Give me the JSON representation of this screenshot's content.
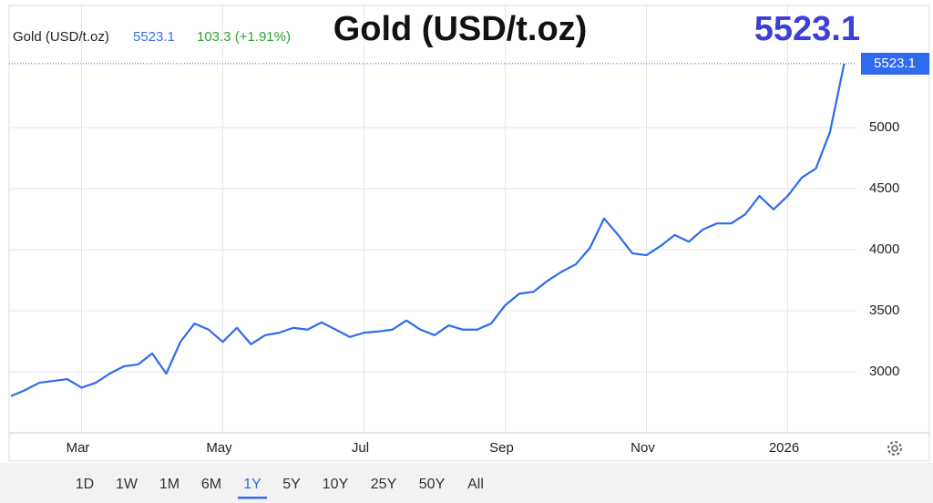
{
  "chart_data": {
    "type": "line",
    "title": "Gold (USD/t.oz)",
    "change": "103.3 (+1.91%)",
    "categories": [
      null,
      null,
      null,
      null,
      null,
      "Mar",
      null,
      null,
      null,
      null,
      null,
      null,
      null,
      null,
      null,
      "May",
      null,
      null,
      null,
      null,
      null,
      null,
      null,
      null,
      null,
      "Jul",
      null,
      null,
      null,
      null,
      null,
      null,
      null,
      null,
      null,
      "Sep",
      null,
      null,
      null,
      null,
      null,
      null,
      null,
      null,
      null,
      "Nov",
      null,
      null,
      null,
      null,
      null,
      null,
      null,
      null,
      null,
      "2026",
      null,
      null,
      null,
      null
    ],
    "values": [
      2800,
      2850,
      2910,
      2925,
      2940,
      2870,
      2910,
      2985,
      3045,
      3060,
      3150,
      2985,
      3245,
      3395,
      3345,
      3245,
      3360,
      3225,
      3300,
      3320,
      3360,
      3345,
      3405,
      3345,
      3285,
      3320,
      3330,
      3345,
      3420,
      3345,
      3300,
      3380,
      3345,
      3345,
      3395,
      3545,
      3640,
      3655,
      3745,
      3820,
      3880,
      4015,
      4255,
      4120,
      3970,
      3955,
      4030,
      4120,
      4065,
      4165,
      4215,
      4215,
      4290,
      4440,
      4330,
      4440,
      4590,
      4665,
      4965,
      5523.1
    ],
    "color": "#2f6bee",
    "ylim": [
      2500,
      6000
    ],
    "yticks": [
      3000,
      3500,
      4000,
      4500,
      5000
    ],
    "grid": true,
    "ranges": [
      "1D",
      "1W",
      "1M",
      "6M",
      "1Y",
      "5Y",
      "10Y",
      "25Y",
      "50Y",
      "All"
    ],
    "active_range": "1Y"
  }
}
